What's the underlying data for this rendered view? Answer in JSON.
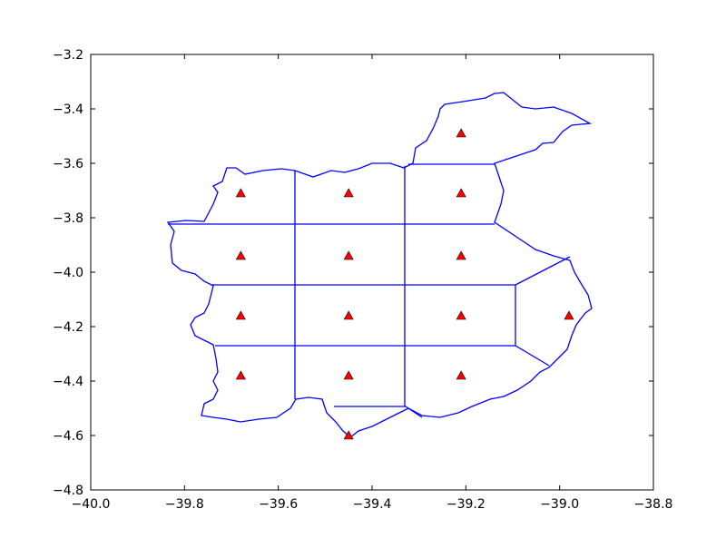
{
  "chart_data": {
    "type": "scatter",
    "color": "#ff0000",
    "x": [
      -39.21,
      -39.68,
      -39.45,
      -39.21,
      -39.68,
      -39.45,
      -39.21,
      -39.68,
      -39.45,
      -39.21,
      -38.98,
      -39.68,
      -39.45,
      -39.21,
      -39.45
    ],
    "values": [
      -3.49,
      -3.71,
      -3.71,
      -3.71,
      -3.94,
      -3.94,
      -3.94,
      -4.16,
      -4.16,
      -4.16,
      -4.16,
      -4.38,
      -4.38,
      -4.38,
      -4.6
    ],
    "xlim": [
      -40.0,
      -38.8
    ],
    "ylim": [
      -4.8,
      -3.2
    ],
    "xticks": [
      {
        "value": -40.0,
        "label": "−40.0"
      },
      {
        "value": -39.8,
        "label": "−39.8"
      },
      {
        "value": -39.6,
        "label": "−39.6"
      },
      {
        "value": -39.4,
        "label": "−39.4"
      },
      {
        "value": -39.2,
        "label": "−39.2"
      },
      {
        "value": -39.0,
        "label": "−39.0"
      },
      {
        "value": -38.8,
        "label": "−38.8"
      }
    ],
    "yticks": [
      {
        "value": -4.8,
        "label": "−4.8"
      },
      {
        "value": -4.6,
        "label": "−4.6"
      },
      {
        "value": -4.4,
        "label": "−4.4"
      },
      {
        "value": -4.2,
        "label": "−4.2"
      },
      {
        "value": -4.0,
        "label": "−4.0"
      },
      {
        "value": -3.8,
        "label": "−3.8"
      },
      {
        "value": -3.6,
        "label": "−3.6"
      },
      {
        "value": -3.4,
        "label": "−3.4"
      },
      {
        "value": -3.2,
        "label": "−3.2"
      }
    ]
  }
}
